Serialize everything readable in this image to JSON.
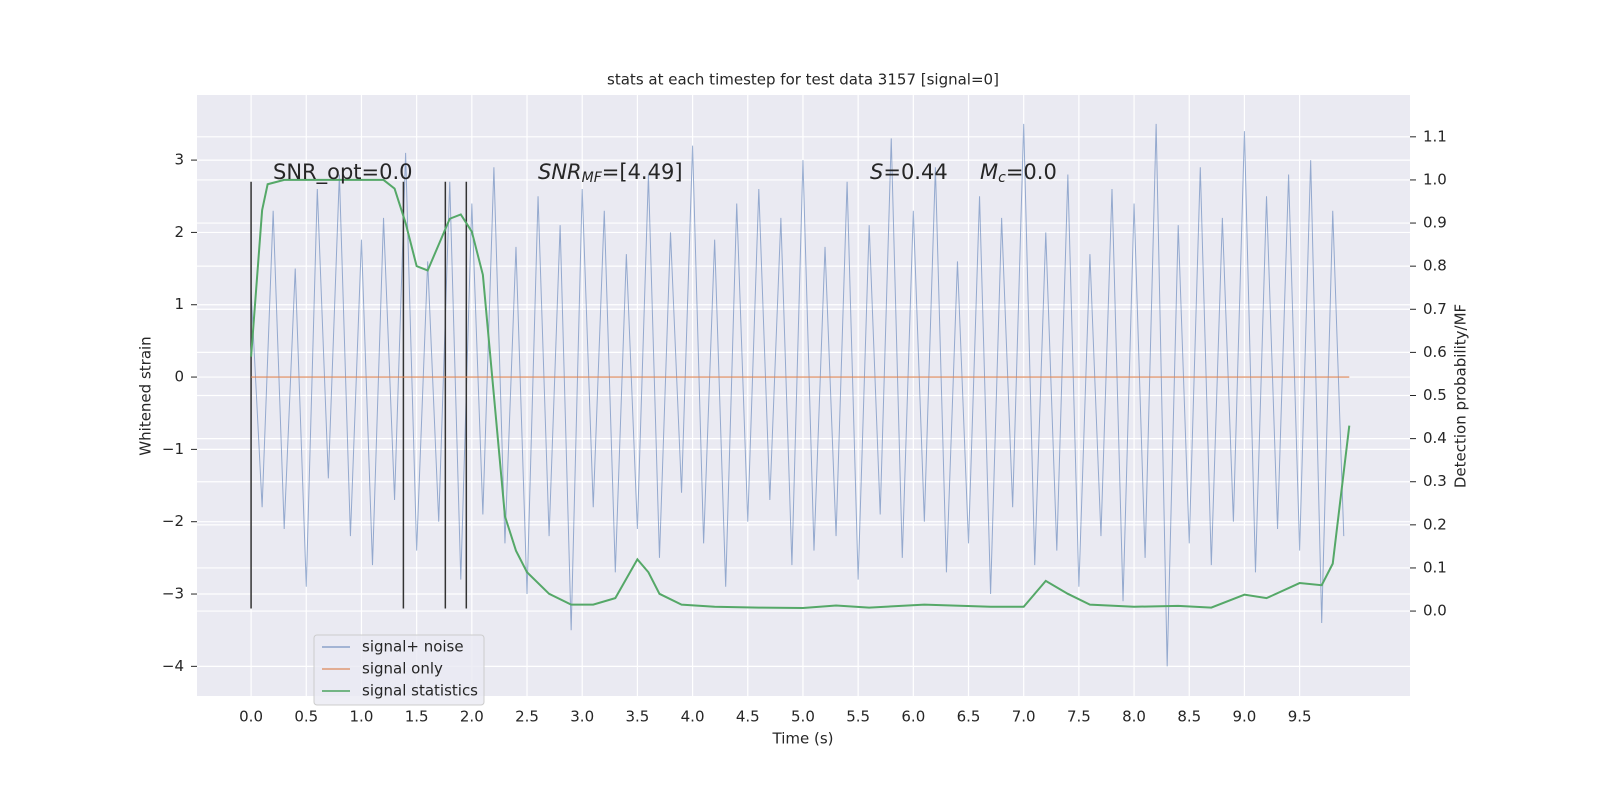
{
  "chart_data": {
    "type": "line",
    "title": "stats at each timestep for test data 3157 [signal=0]",
    "xlabel": "Time (s)",
    "ylabel": "Whitened strain",
    "y2label": "Detection probability/MF",
    "xlim": [
      -0.49,
      10.5
    ],
    "ylim": [
      -4.41,
      3.9
    ],
    "y2lim": [
      -0.197,
      1.197
    ],
    "xticks": [
      {
        "value": 0,
        "label": "0.0"
      },
      0.5,
      {
        "value": 1,
        "label": "1.0"
      },
      1.5,
      {
        "value": 2,
        "label": "2.0"
      },
      2.5,
      {
        "value": 3,
        "label": "3.0"
      },
      3.5,
      {
        "value": 4,
        "label": "4.0"
      },
      4.5,
      {
        "value": 5,
        "label": "5.0"
      },
      5.5,
      {
        "value": 6,
        "label": "6.0"
      },
      6.5,
      {
        "value": 7,
        "label": "7.0"
      },
      7.5,
      {
        "value": 8,
        "label": "8.0"
      },
      8.5,
      {
        "value": 9,
        "label": "9.0"
      },
      9.5
    ],
    "yticks": [
      {
        "value": -4,
        "label": "−4"
      },
      {
        "value": -3,
        "label": "−3"
      },
      {
        "value": -2,
        "label": "−2"
      },
      {
        "value": -1,
        "label": "−1"
      },
      0,
      1,
      2,
      3
    ],
    "y2ticks": [
      {
        "value": 0,
        "label": "0.0"
      },
      0.1,
      0.2,
      0.3,
      0.4,
      0.5,
      0.6,
      0.7,
      0.8,
      0.9,
      {
        "value": 1,
        "label": "1.0"
      },
      1.1
    ],
    "grid": true,
    "series": [
      {
        "name": "signal+ noise",
        "color": "#4c72b0",
        "x": [
          0,
          0.1,
          0.2,
          0.3,
          0.4,
          0.5,
          0.6,
          0.7,
          0.8,
          0.9,
          1,
          1.1,
          1.2,
          1.3,
          1.4,
          1.5,
          1.6,
          1.7,
          1.8,
          1.9,
          2,
          2.1,
          2.2,
          2.3,
          2.4,
          2.5,
          2.6,
          2.7,
          2.8,
          2.9,
          3,
          3.1,
          3.2,
          3.3,
          3.4,
          3.5,
          3.6,
          3.7,
          3.8,
          3.9,
          4,
          4.1,
          4.2,
          4.3,
          4.4,
          4.5,
          4.6,
          4.7,
          4.8,
          4.9,
          5,
          5.1,
          5.2,
          5.3,
          5.4,
          5.5,
          5.6,
          5.7,
          5.8,
          5.9,
          6,
          6.1,
          6.2,
          6.3,
          6.4,
          6.5,
          6.6,
          6.7,
          6.8,
          6.9,
          7,
          7.1,
          7.2,
          7.3,
          7.4,
          7.5,
          7.6,
          7.7,
          7.8,
          7.9,
          8,
          8.1,
          8.2,
          8.3,
          8.4,
          8.5,
          8.6,
          8.7,
          8.8,
          8.9,
          9,
          9.1,
          9.2,
          9.3,
          9.4,
          9.5,
          9.6,
          9.7,
          9.8,
          9.9
        ],
        "values": [
          1.2,
          -1.8,
          2.3,
          -2.1,
          1.5,
          -2.9,
          2.6,
          -1.4,
          2.8,
          -2.2,
          1.9,
          -2.6,
          2.2,
          -1.7,
          3.1,
          -2.4,
          1.6,
          -2.0,
          2.7,
          -2.8,
          2.4,
          -1.9,
          2.9,
          -2.3,
          1.8,
          -3.0,
          2.5,
          -2.2,
          2.1,
          -3.5,
          2.6,
          -1.8,
          2.3,
          -2.7,
          1.7,
          -2.1,
          2.8,
          -2.5,
          2.0,
          -1.6,
          3.2,
          -2.3,
          1.9,
          -2.9,
          2.4,
          -2.0,
          2.6,
          -1.7,
          2.2,
          -2.6,
          3.0,
          -2.4,
          1.8,
          -2.2,
          2.7,
          -2.8,
          2.1,
          -1.9,
          3.3,
          -2.5,
          2.3,
          -2.0,
          2.9,
          -2.7,
          1.6,
          -2.3,
          2.5,
          -3.0,
          2.2,
          -1.8,
          3.5,
          -2.6,
          2.0,
          -2.4,
          2.8,
          -2.9,
          1.7,
          -2.2,
          2.6,
          -3.1,
          2.4,
          -2.5,
          3.5,
          -4.0,
          2.1,
          -2.3,
          2.9,
          -2.6,
          2.2,
          -2.0,
          3.4,
          -2.7,
          2.5,
          -2.1,
          2.8,
          -2.4,
          3.0,
          -3.4,
          2.3,
          -2.2
        ]
      },
      {
        "name": "signal only",
        "color": "#dd8452",
        "x": [
          0,
          9.95
        ],
        "values": [
          0,
          0
        ]
      },
      {
        "name": "signal statistics",
        "color": "#55a868",
        "axis": "y2",
        "x": [
          0,
          0.1,
          0.15,
          0.3,
          1.0,
          1.2,
          1.3,
          1.4,
          1.5,
          1.6,
          1.7,
          1.8,
          1.9,
          2.0,
          2.1,
          2.2,
          2.3,
          2.4,
          2.5,
          2.7,
          2.9,
          3.1,
          3.3,
          3.5,
          3.6,
          3.7,
          3.9,
          4.2,
          4.6,
          5.0,
          5.3,
          5.6,
          6.1,
          6.7,
          7.0,
          7.2,
          7.4,
          7.6,
          8.0,
          8.4,
          8.7,
          9.0,
          9.2,
          9.5,
          9.7,
          9.8,
          9.95
        ],
        "values": [
          0.59,
          0.93,
          0.99,
          1.0,
          1.0,
          1.0,
          0.98,
          0.9,
          0.8,
          0.79,
          0.85,
          0.91,
          0.92,
          0.88,
          0.78,
          0.5,
          0.22,
          0.14,
          0.09,
          0.04,
          0.015,
          0.015,
          0.03,
          0.12,
          0.09,
          0.04,
          0.015,
          0.01,
          0.008,
          0.007,
          0.013,
          0.008,
          0.015,
          0.01,
          0.01,
          0.07,
          0.04,
          0.015,
          0.01,
          0.012,
          0.008,
          0.038,
          0.03,
          0.065,
          0.06,
          0.11,
          0.43
        ]
      }
    ],
    "vlines": {
      "x": [
        0,
        1.38,
        1.76,
        1.95
      ],
      "ymin": -3.2,
      "ymax": 2.7,
      "color": "#333333"
    },
    "annotations": [
      {
        "text": "SNR_opt=0.0"
      },
      {
        "base": "SNR",
        "sub": "MF",
        "rest": "=[4.49]"
      },
      {
        "base": "S",
        "rest": "=0.44"
      },
      {
        "base": "M",
        "sub": "c",
        "rest": "=0.0"
      }
    ],
    "legend": "lower left"
  }
}
